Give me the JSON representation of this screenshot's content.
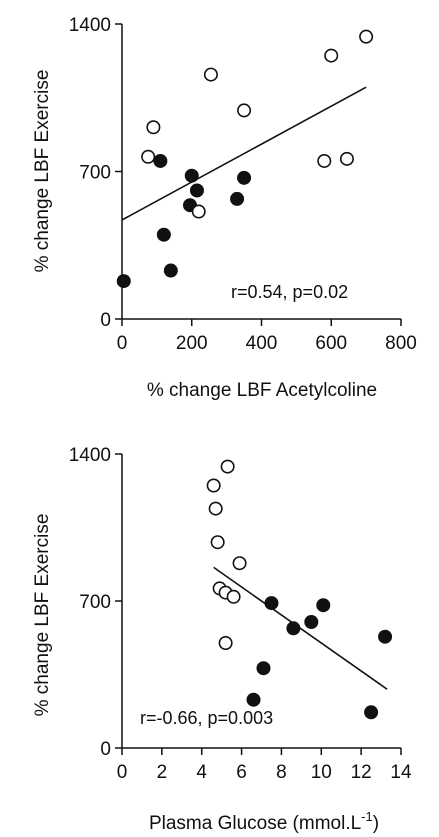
{
  "chart_data": [
    {
      "type": "scatter",
      "xlabel": "% change LBF Acetylcoline",
      "ylabel": "% change LBF Exercise",
      "xlim": [
        0,
        800
      ],
      "ylim": [
        0,
        1400
      ],
      "xticks": [
        "0",
        "200",
        "400",
        "600",
        "800"
      ],
      "yticks": [
        "0",
        "700",
        "1400"
      ],
      "xtick_values": [
        0,
        200,
        400,
        600,
        800
      ],
      "ytick_values": [
        0,
        700,
        1400
      ],
      "annotation": "r=0.54, p=0.02",
      "grid": false,
      "series": [
        {
          "marker": "filled",
          "points": [
            [
              5,
              180
            ],
            [
              110,
              750
            ],
            [
              120,
              400
            ],
            [
              140,
              230
            ],
            [
              195,
              540
            ],
            [
              200,
              680
            ],
            [
              215,
              610
            ],
            [
              330,
              570
            ],
            [
              350,
              670
            ]
          ]
        },
        {
          "marker": "open",
          "points": [
            [
              75,
              770
            ],
            [
              90,
              910
            ],
            [
              220,
              510
            ],
            [
              255,
              1160
            ],
            [
              350,
              990
            ],
            [
              580,
              750
            ],
            [
              600,
              1250
            ],
            [
              645,
              760
            ],
            [
              700,
              1340
            ]
          ]
        }
      ],
      "regression_line": [
        [
          0,
          470
        ],
        [
          700,
          1100
        ]
      ]
    },
    {
      "type": "scatter",
      "xlabel": "Plasma Glucose (mmol.L",
      "xlabel_sup": "-1",
      "xlabel_end": ")",
      "ylabel": "% change LBF Exercise",
      "xlim": [
        0,
        14
      ],
      "ylim": [
        0,
        1400
      ],
      "xticks": [
        "0",
        "2",
        "4",
        "6",
        "8",
        "10",
        "12",
        "14"
      ],
      "yticks": [
        "0",
        "700",
        "1400"
      ],
      "xtick_values": [
        0,
        2,
        4,
        6,
        8,
        10,
        12,
        14
      ],
      "ytick_values": [
        0,
        700,
        1400
      ],
      "annotation": "r=-0.66, p=0.003",
      "grid": false,
      "series": [
        {
          "marker": "filled",
          "points": [
            [
              6.6,
              230
            ],
            [
              7.1,
              380
            ],
            [
              7.5,
              690
            ],
            [
              8.6,
              570
            ],
            [
              9.5,
              600
            ],
            [
              10.1,
              680
            ],
            [
              12.5,
              170
            ],
            [
              13.2,
              530
            ]
          ]
        },
        {
          "marker": "open",
          "points": [
            [
              4.6,
              1250
            ],
            [
              4.7,
              1140
            ],
            [
              4.8,
              980
            ],
            [
              4.9,
              760
            ],
            [
              5.2,
              740
            ],
            [
              5.2,
              500
            ],
            [
              5.3,
              1340
            ],
            [
              5.6,
              720
            ],
            [
              5.9,
              880
            ]
          ]
        }
      ],
      "regression_line": [
        [
          4.6,
          860
        ],
        [
          13.3,
          280
        ]
      ]
    }
  ]
}
